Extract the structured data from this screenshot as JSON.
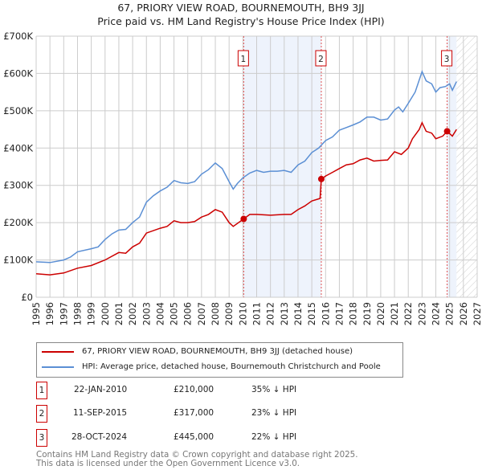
{
  "title_line1": "67, PRIORY VIEW ROAD, BOURNEMOUTH, BH9 3JJ",
  "title_line2": "Price paid vs. HM Land Registry's House Price Index (HPI)",
  "colors": {
    "property": "#cc0000",
    "hpi": "#5b8fd4",
    "shade": "#eef3fc",
    "marker_box": "#cc0000"
  },
  "legend": {
    "property": "67, PRIORY VIEW ROAD, BOURNEMOUTH, BH9 3JJ (detached house)",
    "hpi": "HPI: Average price, detached house, Bournemouth Christchurch and Poole"
  },
  "sales": [
    {
      "num": "1",
      "date": "22-JAN-2010",
      "price": "£210,000",
      "hpi": "35% ↓ HPI"
    },
    {
      "num": "2",
      "date": "11-SEP-2015",
      "price": "£317,000",
      "hpi": "23% ↓ HPI"
    },
    {
      "num": "3",
      "date": "28-OCT-2024",
      "price": "£445,000",
      "hpi": "22% ↓ HPI"
    }
  ],
  "footer": {
    "line1": "Contains HM Land Registry data © Crown copyright and database right 2025.",
    "line2": "This data is licensed under the Open Government Licence v3.0."
  },
  "chart_data": {
    "type": "line",
    "xlim": [
      1995,
      2027
    ],
    "ylim": [
      0,
      700000
    ],
    "yticks": [
      0,
      100000,
      200000,
      300000,
      400000,
      500000,
      600000,
      700000
    ],
    "ytick_labels": [
      "£0",
      "£100K",
      "£200K",
      "£300K",
      "£400K",
      "£500K",
      "£600K",
      "£700K"
    ],
    "xtick_labels": [
      "1995",
      "1996",
      "1997",
      "1998",
      "1999",
      "2000",
      "2001",
      "2002",
      "2003",
      "2004",
      "2005",
      "2006",
      "2007",
      "2008",
      "2009",
      "2010",
      "2011",
      "2012",
      "2013",
      "2014",
      "2015",
      "2016",
      "2017",
      "2018",
      "2019",
      "2020",
      "2021",
      "2022",
      "2023",
      "2024",
      "2025",
      "2026",
      "2027"
    ],
    "grid": true,
    "shaded_ranges": [
      [
        2010.06,
        2015.69
      ],
      [
        2024.82,
        2025.5
      ]
    ],
    "forecast_hatch_from": 2025.5,
    "markers": [
      {
        "label": "1",
        "x": 2010.06,
        "y": 210000
      },
      {
        "label": "2",
        "x": 2015.69,
        "y": 317000
      },
      {
        "label": "3",
        "x": 2024.82,
        "y": 445000
      }
    ],
    "series": [
      {
        "name": "hpi",
        "x": [
          1995,
          1996,
          1997,
          1997.5,
          1998,
          1999,
          1999.5,
          2000,
          2000.5,
          2001,
          2001.5,
          2002,
          2002.5,
          2003,
          2003.5,
          2004,
          2004.5,
          2005,
          2005.5,
          2006,
          2006.5,
          2007,
          2007.5,
          2008,
          2008.5,
          2009,
          2009.3,
          2009.6,
          2010,
          2010.5,
          2011,
          2011.5,
          2012,
          2012.5,
          2013,
          2013.5,
          2014,
          2014.5,
          2015,
          2015.5,
          2016,
          2016.5,
          2017,
          2017.5,
          2018,
          2018.5,
          2019,
          2019.5,
          2020,
          2020.5,
          2021,
          2021.3,
          2021.6,
          2022,
          2022.5,
          2023,
          2023.3,
          2023.7,
          2024,
          2024.3,
          2024.7,
          2025,
          2025.2,
          2025.5
        ],
        "values": [
          95000,
          93000,
          100000,
          108000,
          122000,
          130000,
          135000,
          155000,
          170000,
          180000,
          182000,
          200000,
          215000,
          255000,
          272000,
          285000,
          295000,
          313000,
          307000,
          305000,
          310000,
          330000,
          342000,
          360000,
          345000,
          310000,
          290000,
          305000,
          320000,
          333000,
          340000,
          335000,
          338000,
          338000,
          340000,
          335000,
          355000,
          365000,
          388000,
          400000,
          420000,
          430000,
          448000,
          455000,
          462000,
          470000,
          483000,
          483000,
          475000,
          478000,
          502000,
          510000,
          497000,
          520000,
          550000,
          605000,
          580000,
          572000,
          550000,
          562000,
          565000,
          572000,
          555000,
          578000
        ]
      },
      {
        "name": "property",
        "x": [
          1995,
          1996,
          1997,
          1998,
          1999,
          2000,
          2001,
          2001.5,
          2002,
          2002.5,
          2003,
          2004,
          2004.5,
          2005,
          2005.5,
          2006,
          2006.5,
          2007,
          2007.5,
          2008,
          2008.5,
          2009,
          2009.3,
          2010.06,
          2010.5,
          2011,
          2012,
          2013,
          2013.5,
          2014,
          2014.5,
          2015,
          2015.6,
          2015.69,
          2016,
          2016.5,
          2017,
          2017.5,
          2018,
          2018.5,
          2019,
          2019.5,
          2020,
          2020.5,
          2021,
          2021.5,
          2022,
          2022.3,
          2022.8,
          2023,
          2023.3,
          2023.7,
          2024,
          2024.5,
          2024.82,
          2025.2,
          2025.5
        ],
        "values": [
          63000,
          60000,
          65000,
          78000,
          85000,
          100000,
          120000,
          118000,
          135000,
          145000,
          172000,
          185000,
          190000,
          205000,
          200000,
          200000,
          203000,
          215000,
          222000,
          235000,
          228000,
          200000,
          190000,
          210000,
          222000,
          222000,
          220000,
          222000,
          222000,
          235000,
          245000,
          258000,
          265000,
          317000,
          325000,
          335000,
          345000,
          355000,
          358000,
          368000,
          373000,
          365000,
          367000,
          368000,
          390000,
          383000,
          400000,
          425000,
          450000,
          468000,
          445000,
          440000,
          425000,
          432000,
          445000,
          432000,
          450000
        ]
      }
    ]
  }
}
